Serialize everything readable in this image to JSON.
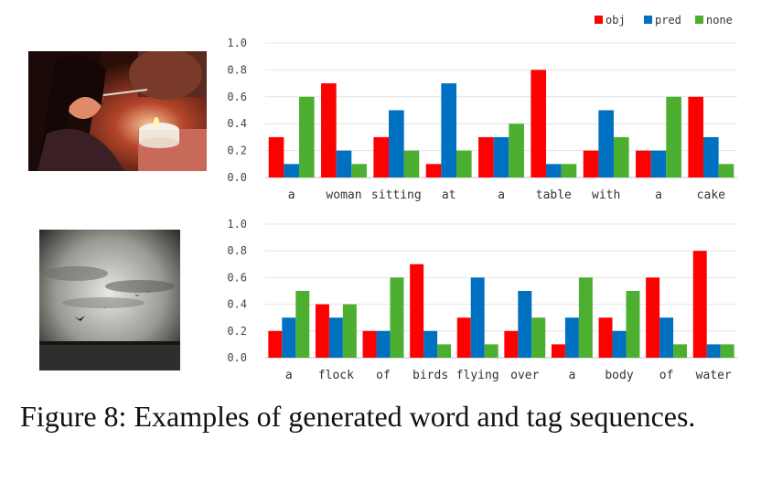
{
  "legend": [
    {
      "label": "obj",
      "color": "#ff0000"
    },
    {
      "label": "pred",
      "color": "#0070c0"
    },
    {
      "label": "none",
      "color": "#4caf30"
    }
  ],
  "chart_data": [
    {
      "type": "bar",
      "categories": [
        "a",
        "woman",
        "sitting",
        "at",
        "a",
        "table",
        "with",
        "a",
        "cake"
      ],
      "series": [
        {
          "name": "obj",
          "values": [
            0.3,
            0.7,
            0.3,
            0.1,
            0.3,
            0.8,
            0.2,
            0.2,
            0.6
          ]
        },
        {
          "name": "pred",
          "values": [
            0.1,
            0.2,
            0.5,
            0.7,
            0.3,
            0.1,
            0.5,
            0.2,
            0.3
          ]
        },
        {
          "name": "none",
          "values": [
            0.6,
            0.1,
            0.2,
            0.2,
            0.4,
            0.1,
            0.3,
            0.6,
            0.1
          ]
        }
      ],
      "yticks": [
        "0.0",
        "0.2",
        "0.4",
        "0.6",
        "0.8",
        "1.0"
      ],
      "ylim": [
        0,
        1.0
      ],
      "grid": true,
      "legend_position": "top-right"
    },
    {
      "type": "bar",
      "categories": [
        "a",
        "flock",
        "of",
        "birds",
        "flying",
        "over",
        "a",
        "body",
        "of",
        "water"
      ],
      "series": [
        {
          "name": "obj",
          "values": [
            0.2,
            0.4,
            0.2,
            0.7,
            0.3,
            0.2,
            0.1,
            0.3,
            0.6,
            0.8
          ]
        },
        {
          "name": "pred",
          "values": [
            0.3,
            0.3,
            0.2,
            0.2,
            0.6,
            0.5,
            0.3,
            0.2,
            0.3,
            0.1
          ]
        },
        {
          "name": "none",
          "values": [
            0.5,
            0.4,
            0.6,
            0.1,
            0.1,
            0.3,
            0.6,
            0.5,
            0.1,
            0.1
          ]
        }
      ],
      "yticks": [
        "0.0",
        "0.2",
        "0.4",
        "0.6",
        "0.8",
        "1.0"
      ],
      "ylim": [
        0,
        1.0
      ],
      "grid": true
    }
  ],
  "caption": "Figure 8:  Examples of generated word and tag sequences."
}
